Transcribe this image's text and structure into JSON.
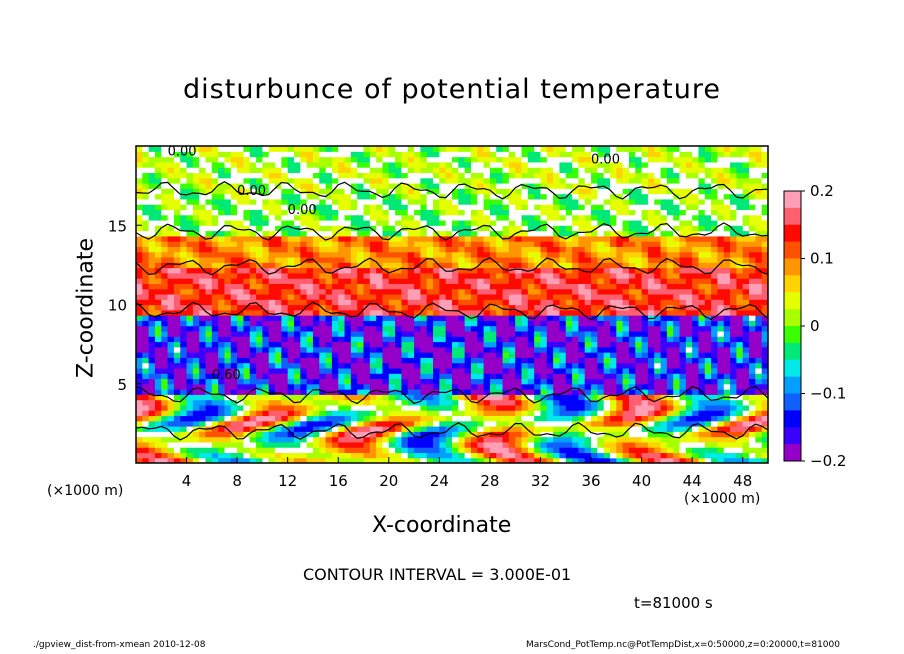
{
  "chart_data": {
    "type": "heatmap",
    "title": "disturbunce of potential temperature",
    "xlabel": "X-coordinate",
    "ylabel": "Z-coordinate",
    "x_unit": "(×1000 m)",
    "y_unit": "(×1000 m)",
    "xlim": [
      0,
      50
    ],
    "ylim": [
      0,
      20
    ],
    "xticks": [
      4,
      8,
      12,
      16,
      20,
      24,
      28,
      32,
      36,
      40,
      44,
      48
    ],
    "yticks": [
      5,
      10,
      15
    ],
    "colorbar": {
      "range": [
        -0.2,
        0.2
      ],
      "ticks": [
        "0.2",
        "0.1",
        "0",
        "−0.1",
        "−0.2"
      ],
      "tick_values": [
        0.2,
        0.1,
        0,
        -0.1,
        -0.2
      ],
      "colors": [
        "#ff9fb5",
        "#ff5f6f",
        "#ff0a00",
        "#ff5200",
        "#ff9600",
        "#ffd200",
        "#e6ff00",
        "#a8ff00",
        "#3aff00",
        "#00e878",
        "#00e8e8",
        "#00a0ff",
        "#1060ff",
        "#0000ff",
        "#3a00ff",
        "#9400c8"
      ]
    },
    "contour_labels": [
      "0.00",
      "0.00",
      "0.00",
      "0.00",
      "0.60"
    ],
    "contour_interval": "CONTOUR INTERVAL = 3.000E-01",
    "time": "t=81000 s",
    "horizontal_bands": [
      {
        "z_from": 0,
        "z_to": 4.2,
        "mean": 0.02
      },
      {
        "z_from": 4.2,
        "z_to": 9.5,
        "mean": -0.15
      },
      {
        "z_from": 9.5,
        "z_to": 12.5,
        "mean": 0.14
      },
      {
        "z_from": 12.5,
        "z_to": 14.5,
        "mean": 0.09
      },
      {
        "z_from": 14.5,
        "z_to": 17,
        "mean": 0.0
      },
      {
        "z_from": 17,
        "z_to": 20,
        "mean": 0.01
      }
    ]
  },
  "footer": {
    "left": "./gpview_dist-from-xmean  2010-12-08",
    "right": "MarsCond_PotTemp.nc@PotTempDist,x=0:50000,z=0:20000,t=81000"
  }
}
